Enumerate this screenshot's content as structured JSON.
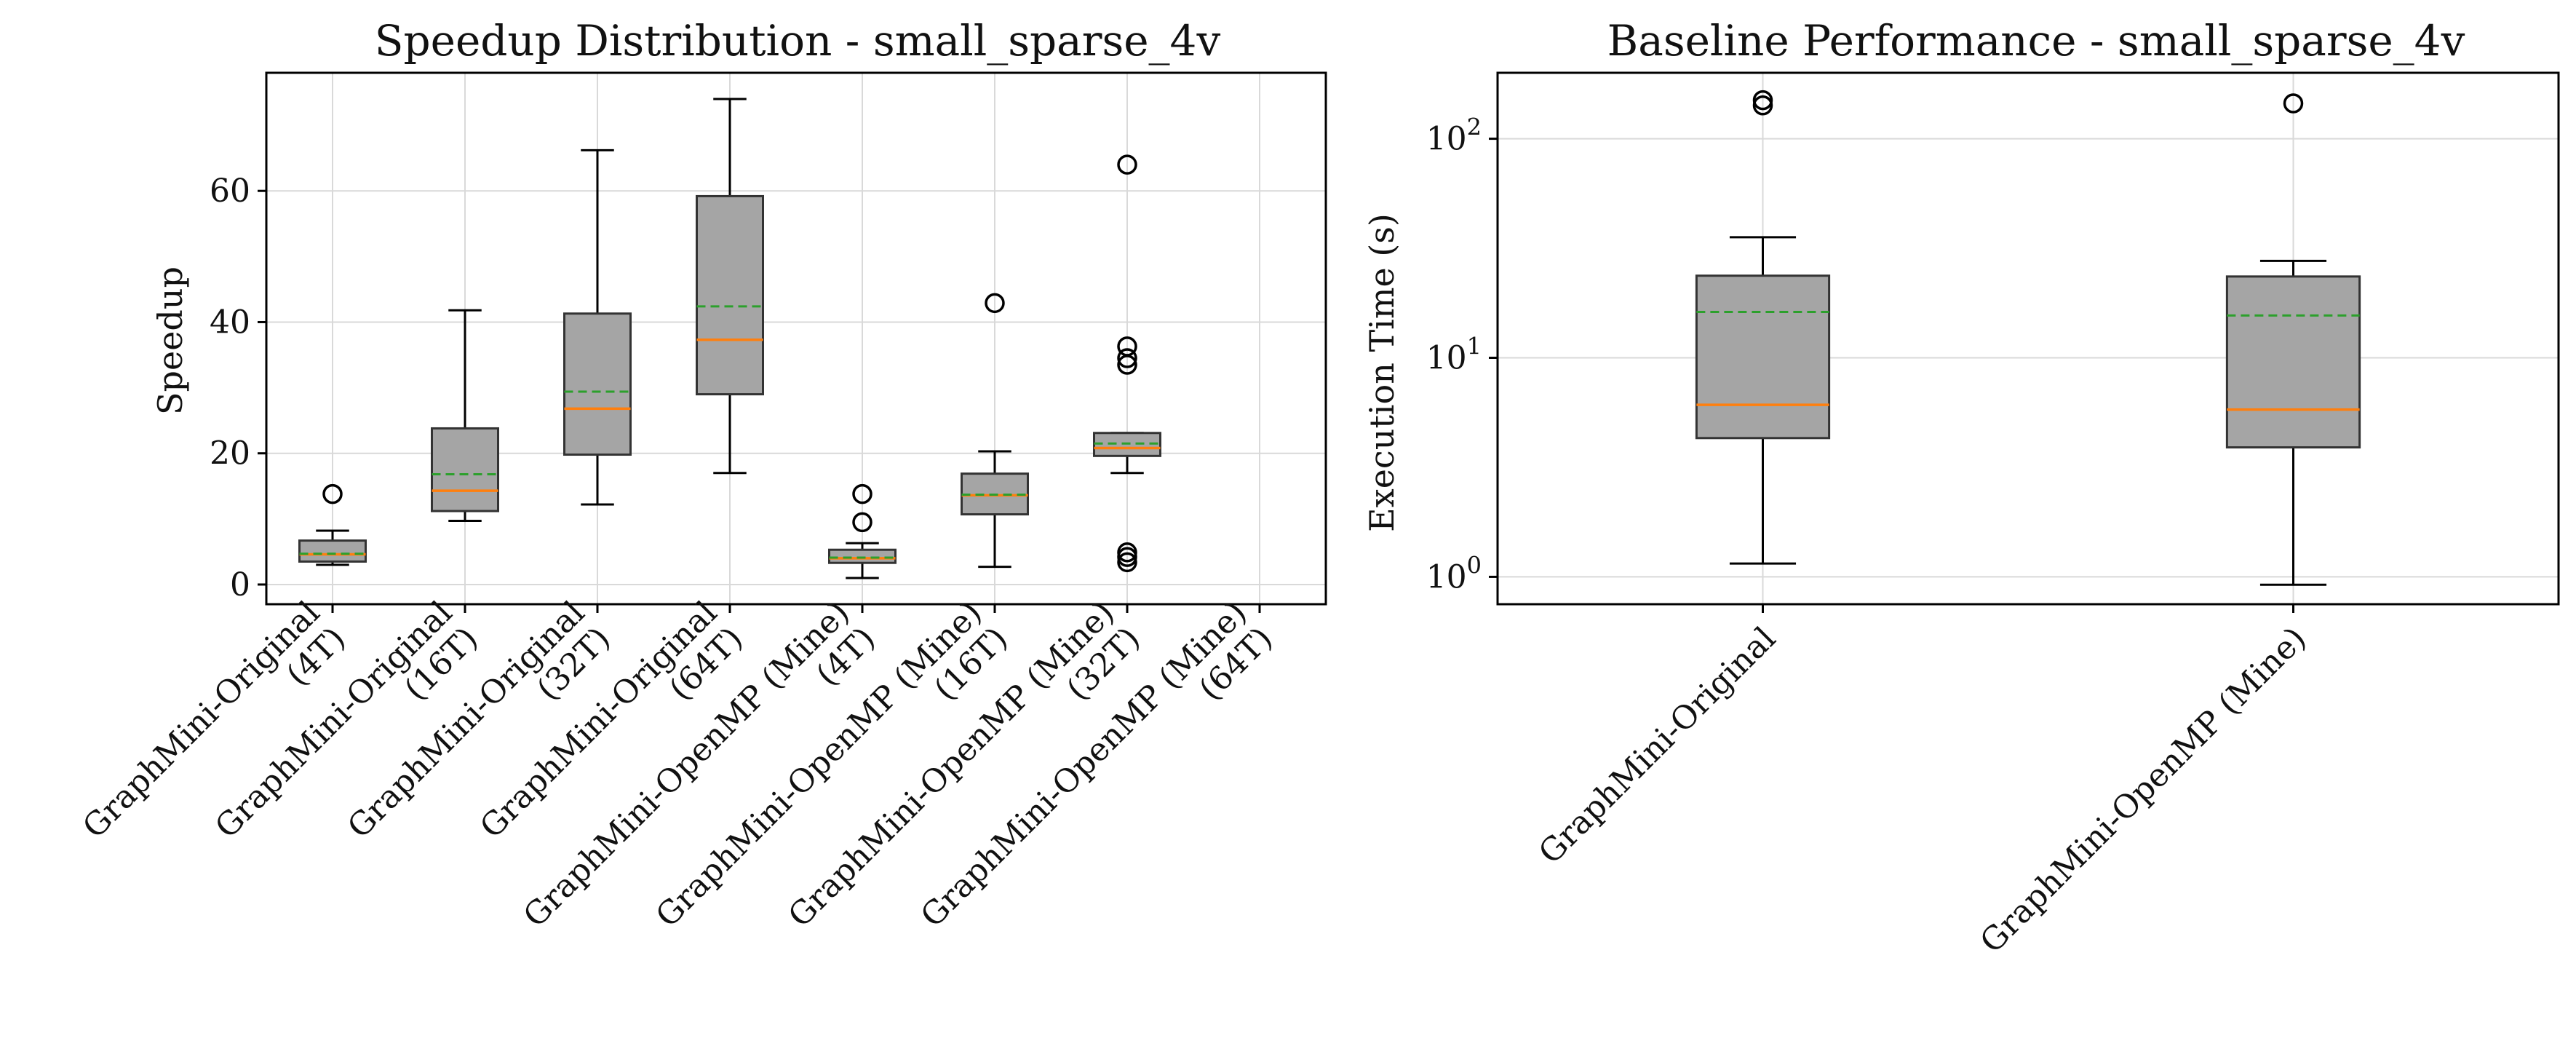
{
  "chart_data": [
    {
      "type": "box",
      "title": "Speedup Distribution - small_sparse_4v",
      "xlabel": "",
      "ylabel": "Speedup",
      "ylim": [
        -3,
        78
      ],
      "yscale": "linear",
      "yticks": [
        0,
        20,
        40,
        60
      ],
      "grid": true,
      "categories": [
        "GraphMini-Original\n(4T)",
        "GraphMini-Original\n(16T)",
        "GraphMini-Original\n(32T)",
        "GraphMini-Original\n(64T)",
        "GraphMini-OpenMP (Mine)\n(4T)",
        "GraphMini-OpenMP (Mine)\n(16T)",
        "GraphMini-OpenMP (Mine)\n(32T)",
        "GraphMini-OpenMP (Mine)\n(64T)"
      ],
      "boxes": [
        {
          "whislo": 3.0,
          "q1": 3.5,
          "median": 4.6,
          "mean": 4.7,
          "q3": 6.7,
          "whishi": 8.2,
          "fliers": [
            13.8
          ]
        },
        {
          "whislo": 9.7,
          "q1": 11.2,
          "median": 14.3,
          "mean": 16.8,
          "q3": 23.8,
          "whishi": 41.8,
          "fliers": []
        },
        {
          "whislo": 12.2,
          "q1": 19.8,
          "median": 26.8,
          "mean": 29.4,
          "q3": 41.3,
          "whishi": 66.2,
          "fliers": []
        },
        {
          "whislo": 17.0,
          "q1": 29.0,
          "median": 37.3,
          "mean": 42.4,
          "q3": 59.2,
          "whishi": 74.0,
          "fliers": []
        },
        {
          "whislo": 1.0,
          "q1": 3.3,
          "median": 4.0,
          "mean": 4.1,
          "q3": 5.3,
          "whishi": 6.3,
          "fliers": [
            9.5,
            13.8
          ]
        },
        {
          "whislo": 2.7,
          "q1": 10.7,
          "median": 13.6,
          "mean": 13.7,
          "q3": 16.9,
          "whishi": 20.3,
          "fliers": [
            42.9
          ]
        },
        {
          "whislo": 17.0,
          "q1": 19.6,
          "median": 20.8,
          "mean": 21.5,
          "q3": 23.1,
          "whishi": 23.1,
          "fliers": [
            64.0,
            36.3,
            34.5,
            33.5,
            4.9,
            4.2,
            3.4
          ]
        },
        null
      ]
    },
    {
      "type": "box",
      "title": "Baseline Performance - small_sparse_4v",
      "xlabel": "",
      "ylabel": "Execution Time (s)",
      "yscale": "log",
      "ylim": [
        0.75,
        200
      ],
      "yticks": [
        1,
        10,
        100
      ],
      "ytick_labels": [
        {
          "base": "10",
          "exp": "0"
        },
        {
          "base": "10",
          "exp": "1"
        },
        {
          "base": "10",
          "exp": "2"
        }
      ],
      "grid": true,
      "categories": [
        "GraphMini-Original",
        "GraphMini-OpenMP (Mine)"
      ],
      "boxes": [
        {
          "whislo": 1.15,
          "q1": 4.3,
          "median": 6.1,
          "mean": 16.2,
          "q3": 23.7,
          "whishi": 35.5,
          "fliers": [
            142,
            150
          ]
        },
        {
          "whislo": 0.92,
          "q1": 3.9,
          "median": 5.8,
          "mean": 15.6,
          "q3": 23.5,
          "whishi": 27.7,
          "fliers": [
            145
          ]
        }
      ]
    }
  ],
  "colors": {
    "box_fill": "#a5a5a5",
    "box_edge": "#333333",
    "median": "#ff7f0e",
    "mean": "#2ca02c",
    "grid": "#d9d9d9"
  }
}
